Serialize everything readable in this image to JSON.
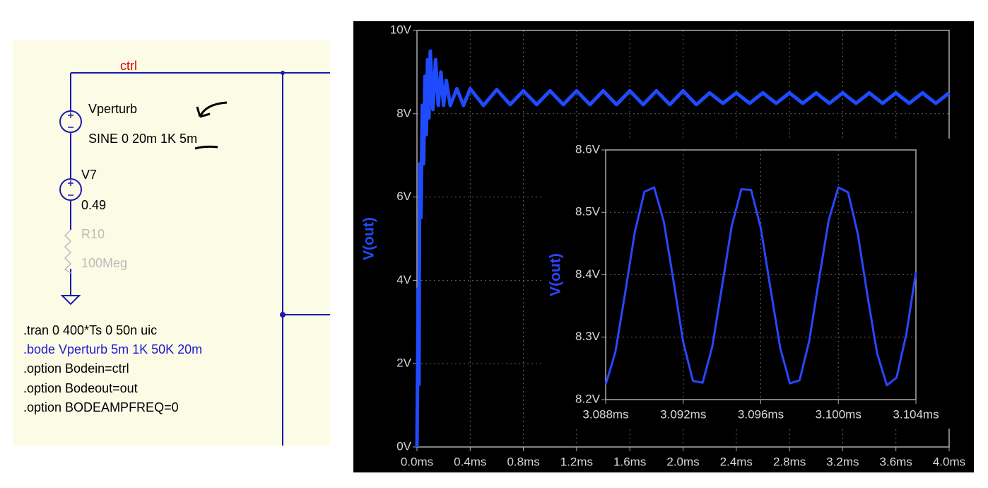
{
  "schematic": {
    "net_label": "ctrl",
    "sources": [
      {
        "name": "Vperturb",
        "value": "SINE 0 20m 1K 5m"
      },
      {
        "name": "V7",
        "value": "0.49"
      }
    ],
    "resistor": {
      "name": "R10",
      "value": "100Meg"
    },
    "directives": [
      ".tran 0 400*Ts 0 50n uic",
      ".bode Vperturb 5m 1K 50K 20m",
      ".option Bodein=ctrl",
      ".option Bodeout=out",
      ".option BODEAMPFREQ=0"
    ]
  },
  "chart_data": [
    {
      "type": "line",
      "grid": true,
      "x": [
        0,
        0.01,
        0.015,
        0.02,
        0.03,
        0.04,
        0.05,
        0.06,
        0.07,
        0.08,
        0.09,
        0.1,
        0.12,
        0.14,
        0.16,
        0.18,
        0.2,
        0.22,
        0.25,
        0.3,
        0.35,
        0.4,
        0.5,
        0.6,
        0.7,
        0.8,
        0.9,
        1.0,
        1.1,
        1.2,
        1.3,
        1.4,
        1.5,
        1.6,
        1.7,
        1.8,
        1.9,
        2.0,
        2.1,
        2.2,
        2.3,
        2.4,
        2.5,
        2.6,
        2.7,
        2.8,
        2.9,
        3.0,
        3.1,
        3.2,
        3.3,
        3.4,
        3.5,
        3.6,
        3.7,
        3.8,
        3.9,
        4.0
      ],
      "series": [
        {
          "name": "V(out)",
          "color": "#1f4bff",
          "values": [
            0,
            3.8,
            1.5,
            6.8,
            5.5,
            8.2,
            6.8,
            8.9,
            7.5,
            9.3,
            7.9,
            9.5,
            8.1,
            9.3,
            8.2,
            9.0,
            8.2,
            8.8,
            8.2,
            8.6,
            8.2,
            8.6,
            8.2,
            8.58,
            8.22,
            8.55,
            8.22,
            8.55,
            8.22,
            8.55,
            8.22,
            8.55,
            8.22,
            8.55,
            8.22,
            8.55,
            8.22,
            8.55,
            8.22,
            8.5,
            8.25,
            8.5,
            8.25,
            8.5,
            8.25,
            8.5,
            8.25,
            8.5,
            8.25,
            8.5,
            8.25,
            8.5,
            8.25,
            8.5,
            8.25,
            8.5,
            8.25,
            8.5
          ]
        }
      ],
      "xlim": [
        0,
        4
      ],
      "xticks": [
        {
          "value": 0,
          "label": "0.0ms"
        },
        {
          "value": 0.4,
          "label": "0.4ms"
        },
        {
          "value": 0.8,
          "label": "0.8ms"
        },
        {
          "value": 1.2,
          "label": "1.2ms"
        },
        {
          "value": 1.6,
          "label": "1.6ms"
        },
        {
          "value": 2.0,
          "label": "2.0ms"
        },
        {
          "value": 2.4,
          "label": "2.4ms"
        },
        {
          "value": 2.8,
          "label": "2.8ms"
        },
        {
          "value": 3.2,
          "label": "3.2ms"
        },
        {
          "value": 3.6,
          "label": "3.6ms"
        },
        {
          "value": 4.0,
          "label": "4.0ms"
        }
      ],
      "ylim": [
        0,
        10
      ],
      "yticks": [
        {
          "value": 0,
          "label": "0V"
        },
        {
          "value": 2,
          "label": "2V"
        },
        {
          "value": 4,
          "label": "4V"
        },
        {
          "value": 6,
          "label": "6V"
        },
        {
          "value": 8,
          "label": "8V"
        },
        {
          "value": 10,
          "label": "10V"
        }
      ]
    },
    {
      "type": "line",
      "grid": true,
      "x": [
        3.088,
        3.0885,
        3.089,
        3.0895,
        3.09,
        3.0905,
        3.091,
        3.0915,
        3.092,
        3.0925,
        3.093,
        3.0935,
        3.094,
        3.0945,
        3.095,
        3.0955,
        3.096,
        3.0965,
        3.097,
        3.0975,
        3.098,
        3.0985,
        3.099,
        3.0995,
        3.1,
        3.1005,
        3.101,
        3.1015,
        3.102,
        3.1025,
        3.103,
        3.1035,
        3.104
      ],
      "series": [
        {
          "name": "V(out)",
          "color": "#2a46ff",
          "values": [
            8.224,
            8.276,
            8.37,
            8.468,
            8.533,
            8.54,
            8.485,
            8.39,
            8.292,
            8.23,
            8.227,
            8.285,
            8.381,
            8.478,
            8.537,
            8.536,
            8.475,
            8.378,
            8.283,
            8.226,
            8.231,
            8.294,
            8.392,
            8.487,
            8.54,
            8.532,
            8.466,
            8.367,
            8.274,
            8.223,
            8.235,
            8.304,
            8.404
          ]
        }
      ],
      "xlim": [
        3.088,
        3.104
      ],
      "xticks": [
        {
          "value": 3.088,
          "label": "3.088ms"
        },
        {
          "value": 3.092,
          "label": "3.092ms"
        },
        {
          "value": 3.096,
          "label": "3.096ms"
        },
        {
          "value": 3.1,
          "label": "3.100ms"
        },
        {
          "value": 3.104,
          "label": "3.104ms"
        }
      ],
      "ylim": [
        8.2,
        8.6
      ],
      "yticks": [
        {
          "value": 8.2,
          "label": "8.2V"
        },
        {
          "value": 8.3,
          "label": "8.3V"
        },
        {
          "value": 8.4,
          "label": "8.4V"
        },
        {
          "value": 8.5,
          "label": "8.5V"
        },
        {
          "value": 8.6,
          "label": "8.6V"
        }
      ]
    }
  ]
}
